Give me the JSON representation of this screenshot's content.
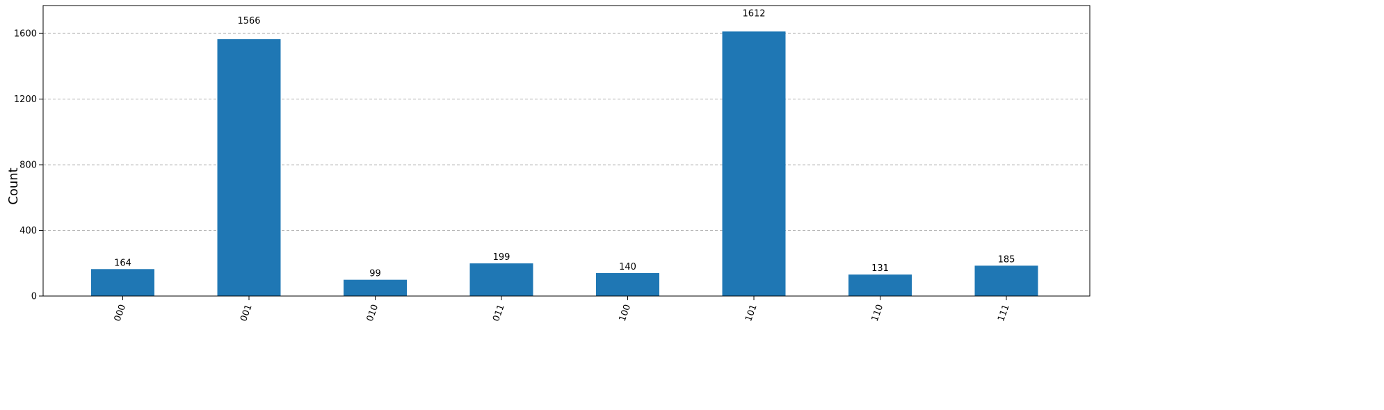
{
  "chart_data": {
    "type": "bar",
    "categories": [
      "000",
      "001",
      "010",
      "011",
      "100",
      "101",
      "110",
      "111"
    ],
    "values": [
      164,
      1566,
      99,
      199,
      140,
      1612,
      131,
      185
    ],
    "title": "",
    "xlabel": "",
    "ylabel": "Count",
    "ylim": [
      0,
      1770
    ],
    "yticks": [
      0,
      400,
      800,
      1200,
      1600
    ],
    "grid": true,
    "bar_color": "#1f77b4",
    "grid_color": "#b0b0b0"
  }
}
